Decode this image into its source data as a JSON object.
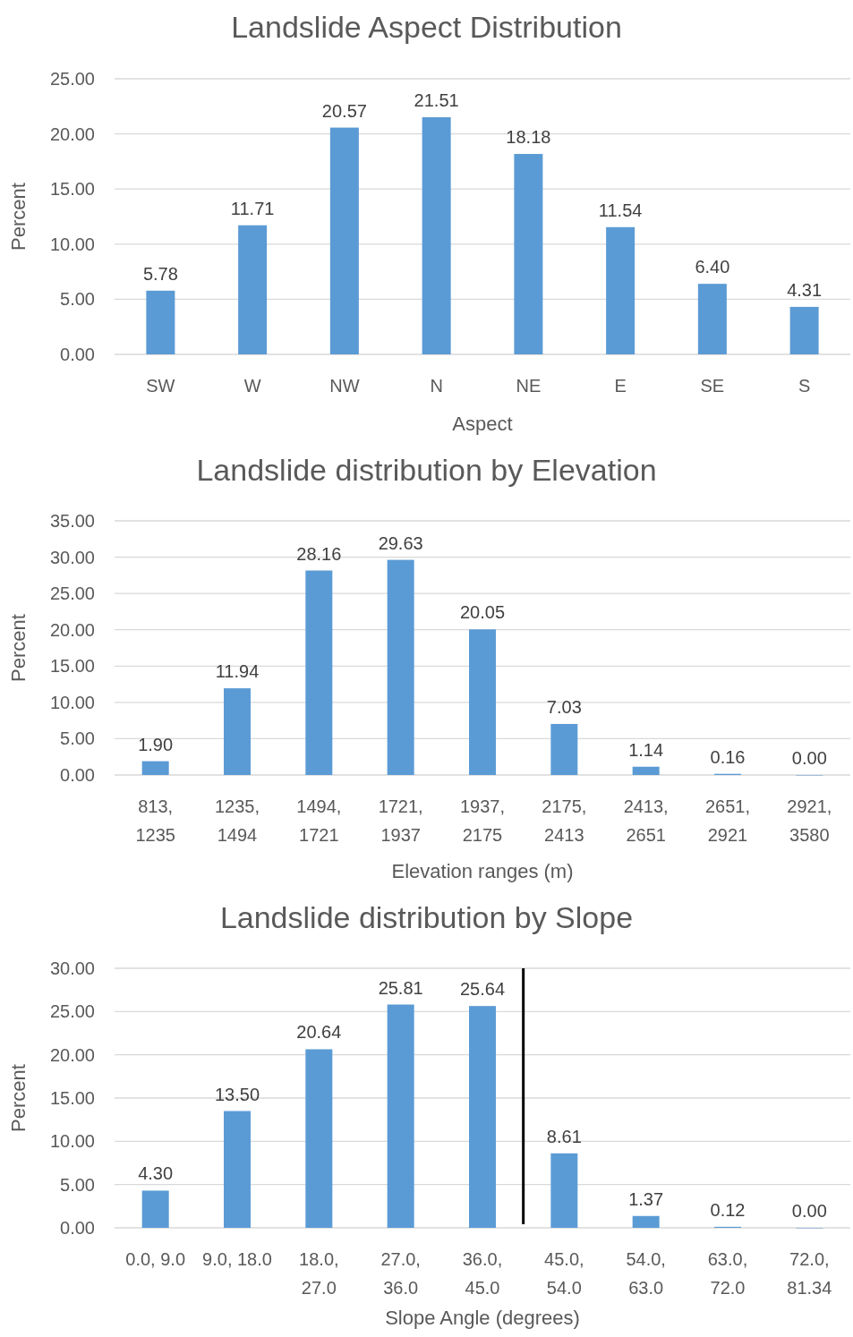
{
  "chart_data": [
    {
      "type": "bar",
      "title": "Landslide Aspect Distribution",
      "xlabel": "Aspect",
      "ylabel": "Percent",
      "categories": [
        "SW",
        "W",
        "NW",
        "N",
        "NE",
        "E",
        "SE",
        "S"
      ],
      "values": [
        5.78,
        11.71,
        20.57,
        21.51,
        18.18,
        11.54,
        6.4,
        4.31
      ],
      "value_labels": [
        "5.78",
        "11.71",
        "20.57",
        "21.51",
        "18.18",
        "11.54",
        "6.40",
        "4.31"
      ],
      "color": "#5b9bd5",
      "ylim": [
        0,
        25
      ],
      "yticks": [
        {
          "value": 0,
          "label": "0.00"
        },
        {
          "value": 5,
          "label": "5.00"
        },
        {
          "value": 10,
          "label": "10.00"
        },
        {
          "value": 15,
          "label": "15.00"
        },
        {
          "value": 20,
          "label": "20.00"
        },
        {
          "value": 25,
          "label": "25.00"
        }
      ],
      "grid": "y"
    },
    {
      "type": "bar",
      "title": "Landslide distribution by Elevation",
      "xlabel": "Elevation ranges (m)",
      "ylabel": "Percent",
      "categories": [
        "813,\n1235",
        "1235,\n1494",
        "1494,\n1721",
        "1721,\n1937",
        "1937,\n2175",
        "2175,\n2413",
        "2413,\n2651",
        "2651,\n2921",
        "2921,\n3580"
      ],
      "values": [
        1.9,
        11.94,
        28.16,
        29.63,
        20.05,
        7.03,
        1.14,
        0.16,
        0.0
      ],
      "value_labels": [
        "1.90",
        "11.94",
        "28.16",
        "29.63",
        "20.05",
        "7.03",
        "1.14",
        "0.16",
        "0.00"
      ],
      "color": "#5b9bd5",
      "ylim": [
        0,
        35
      ],
      "yticks": [
        {
          "value": 0,
          "label": "0.00"
        },
        {
          "value": 5,
          "label": "5.00"
        },
        {
          "value": 10,
          "label": "10.00"
        },
        {
          "value": 15,
          "label": "15.00"
        },
        {
          "value": 20,
          "label": "20.00"
        },
        {
          "value": 25,
          "label": "25.00"
        },
        {
          "value": 30,
          "label": "30.00"
        },
        {
          "value": 35,
          "label": "35.00"
        }
      ],
      "grid": "y"
    },
    {
      "type": "bar",
      "title": "Landslide distribution by Slope",
      "xlabel": "Slope Angle (degrees)",
      "ylabel": "Percent",
      "categories": [
        "0.0, 9.0",
        "9.0, 18.0",
        "18.0,\n27.0",
        "27.0,\n36.0",
        "36.0,\n45.0",
        "45.0,\n54.0",
        "54.0,\n63.0",
        "63.0,\n72.0",
        "72.0,\n81.34"
      ],
      "values": [
        4.3,
        13.5,
        20.64,
        25.81,
        25.64,
        8.61,
        1.37,
        0.12,
        0.0
      ],
      "value_labels": [
        "4.30",
        "13.50",
        "20.64",
        "25.81",
        "25.64",
        "8.61",
        "1.37",
        "0.12",
        "0.00"
      ],
      "color": "#5b9bd5",
      "ylim": [
        0,
        30
      ],
      "yticks": [
        {
          "value": 0,
          "label": "0.00"
        },
        {
          "value": 5,
          "label": "5.00"
        },
        {
          "value": 10,
          "label": "10.00"
        },
        {
          "value": 15,
          "label": "15.00"
        },
        {
          "value": 20,
          "label": "20.00"
        },
        {
          "value": 25,
          "label": "25.00"
        },
        {
          "value": 30,
          "label": "30.00"
        }
      ],
      "grid": "y"
    }
  ]
}
